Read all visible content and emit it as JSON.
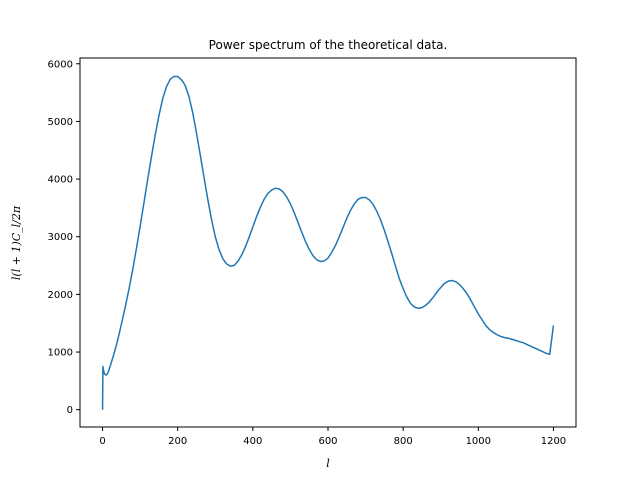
{
  "chart_data": {
    "type": "line",
    "title": "Power spectrum of the theoretical data.",
    "xlabel": "l",
    "ylabel": "l(l + 1)C_l/2π",
    "xlim": [
      -60,
      1260
    ],
    "ylim": [
      -300,
      6100
    ],
    "xticks": [
      0,
      200,
      400,
      600,
      800,
      1000,
      1200
    ],
    "yticks": [
      0,
      1000,
      2000,
      3000,
      4000,
      5000,
      6000
    ],
    "grid": false,
    "series": [
      {
        "color": "#1f77b4",
        "x": [
          0,
          1,
          2,
          5,
          10,
          15,
          20,
          30,
          40,
          50,
          60,
          70,
          80,
          90,
          100,
          110,
          120,
          130,
          140,
          150,
          160,
          170,
          180,
          190,
          200,
          210,
          215,
          220,
          230,
          240,
          250,
          260,
          270,
          280,
          290,
          300,
          310,
          320,
          330,
          340,
          350,
          360,
          370,
          380,
          390,
          400,
          410,
          420,
          430,
          440,
          450,
          460,
          470,
          480,
          490,
          500,
          510,
          520,
          530,
          540,
          550,
          560,
          570,
          580,
          590,
          600,
          610,
          620,
          630,
          640,
          650,
          660,
          670,
          680,
          690,
          700,
          710,
          720,
          730,
          740,
          750,
          760,
          770,
          780,
          790,
          800,
          810,
          820,
          830,
          840,
          850,
          860,
          870,
          880,
          890,
          900,
          910,
          920,
          930,
          940,
          950,
          960,
          970,
          980,
          990,
          1000,
          1010,
          1020,
          1030,
          1040,
          1050,
          1060,
          1070,
          1080,
          1090,
          1100,
          1110,
          1120,
          1130,
          1140,
          1150,
          1160,
          1170,
          1180,
          1190,
          1200
        ],
        "y": [
          0,
          750,
          700,
          620,
          600,
          650,
          750,
          960,
          1200,
          1480,
          1770,
          2080,
          2420,
          2790,
          3180,
          3580,
          3990,
          4380,
          4760,
          5100,
          5390,
          5600,
          5730,
          5780,
          5780,
          5720,
          5680,
          5620,
          5430,
          5150,
          4800,
          4420,
          4030,
          3650,
          3300,
          3000,
          2780,
          2620,
          2530,
          2490,
          2500,
          2570,
          2680,
          2820,
          2990,
          3170,
          3350,
          3510,
          3650,
          3750,
          3810,
          3840,
          3830,
          3780,
          3690,
          3570,
          3420,
          3250,
          3080,
          2920,
          2780,
          2670,
          2600,
          2570,
          2580,
          2630,
          2730,
          2850,
          3000,
          3160,
          3320,
          3460,
          3570,
          3650,
          3680,
          3680,
          3640,
          3560,
          3440,
          3290,
          3110,
          2910,
          2700,
          2480,
          2270,
          2100,
          1950,
          1840,
          1780,
          1760,
          1770,
          1810,
          1870,
          1950,
          2040,
          2120,
          2190,
          2230,
          2240,
          2220,
          2170,
          2100,
          2010,
          1900,
          1780,
          1660,
          1560,
          1460,
          1390,
          1340,
          1300,
          1270,
          1250,
          1240,
          1220,
          1200,
          1180,
          1160,
          1130,
          1100,
          1070,
          1040,
          1010,
          980,
          960,
          1460
        ]
      }
    ]
  }
}
